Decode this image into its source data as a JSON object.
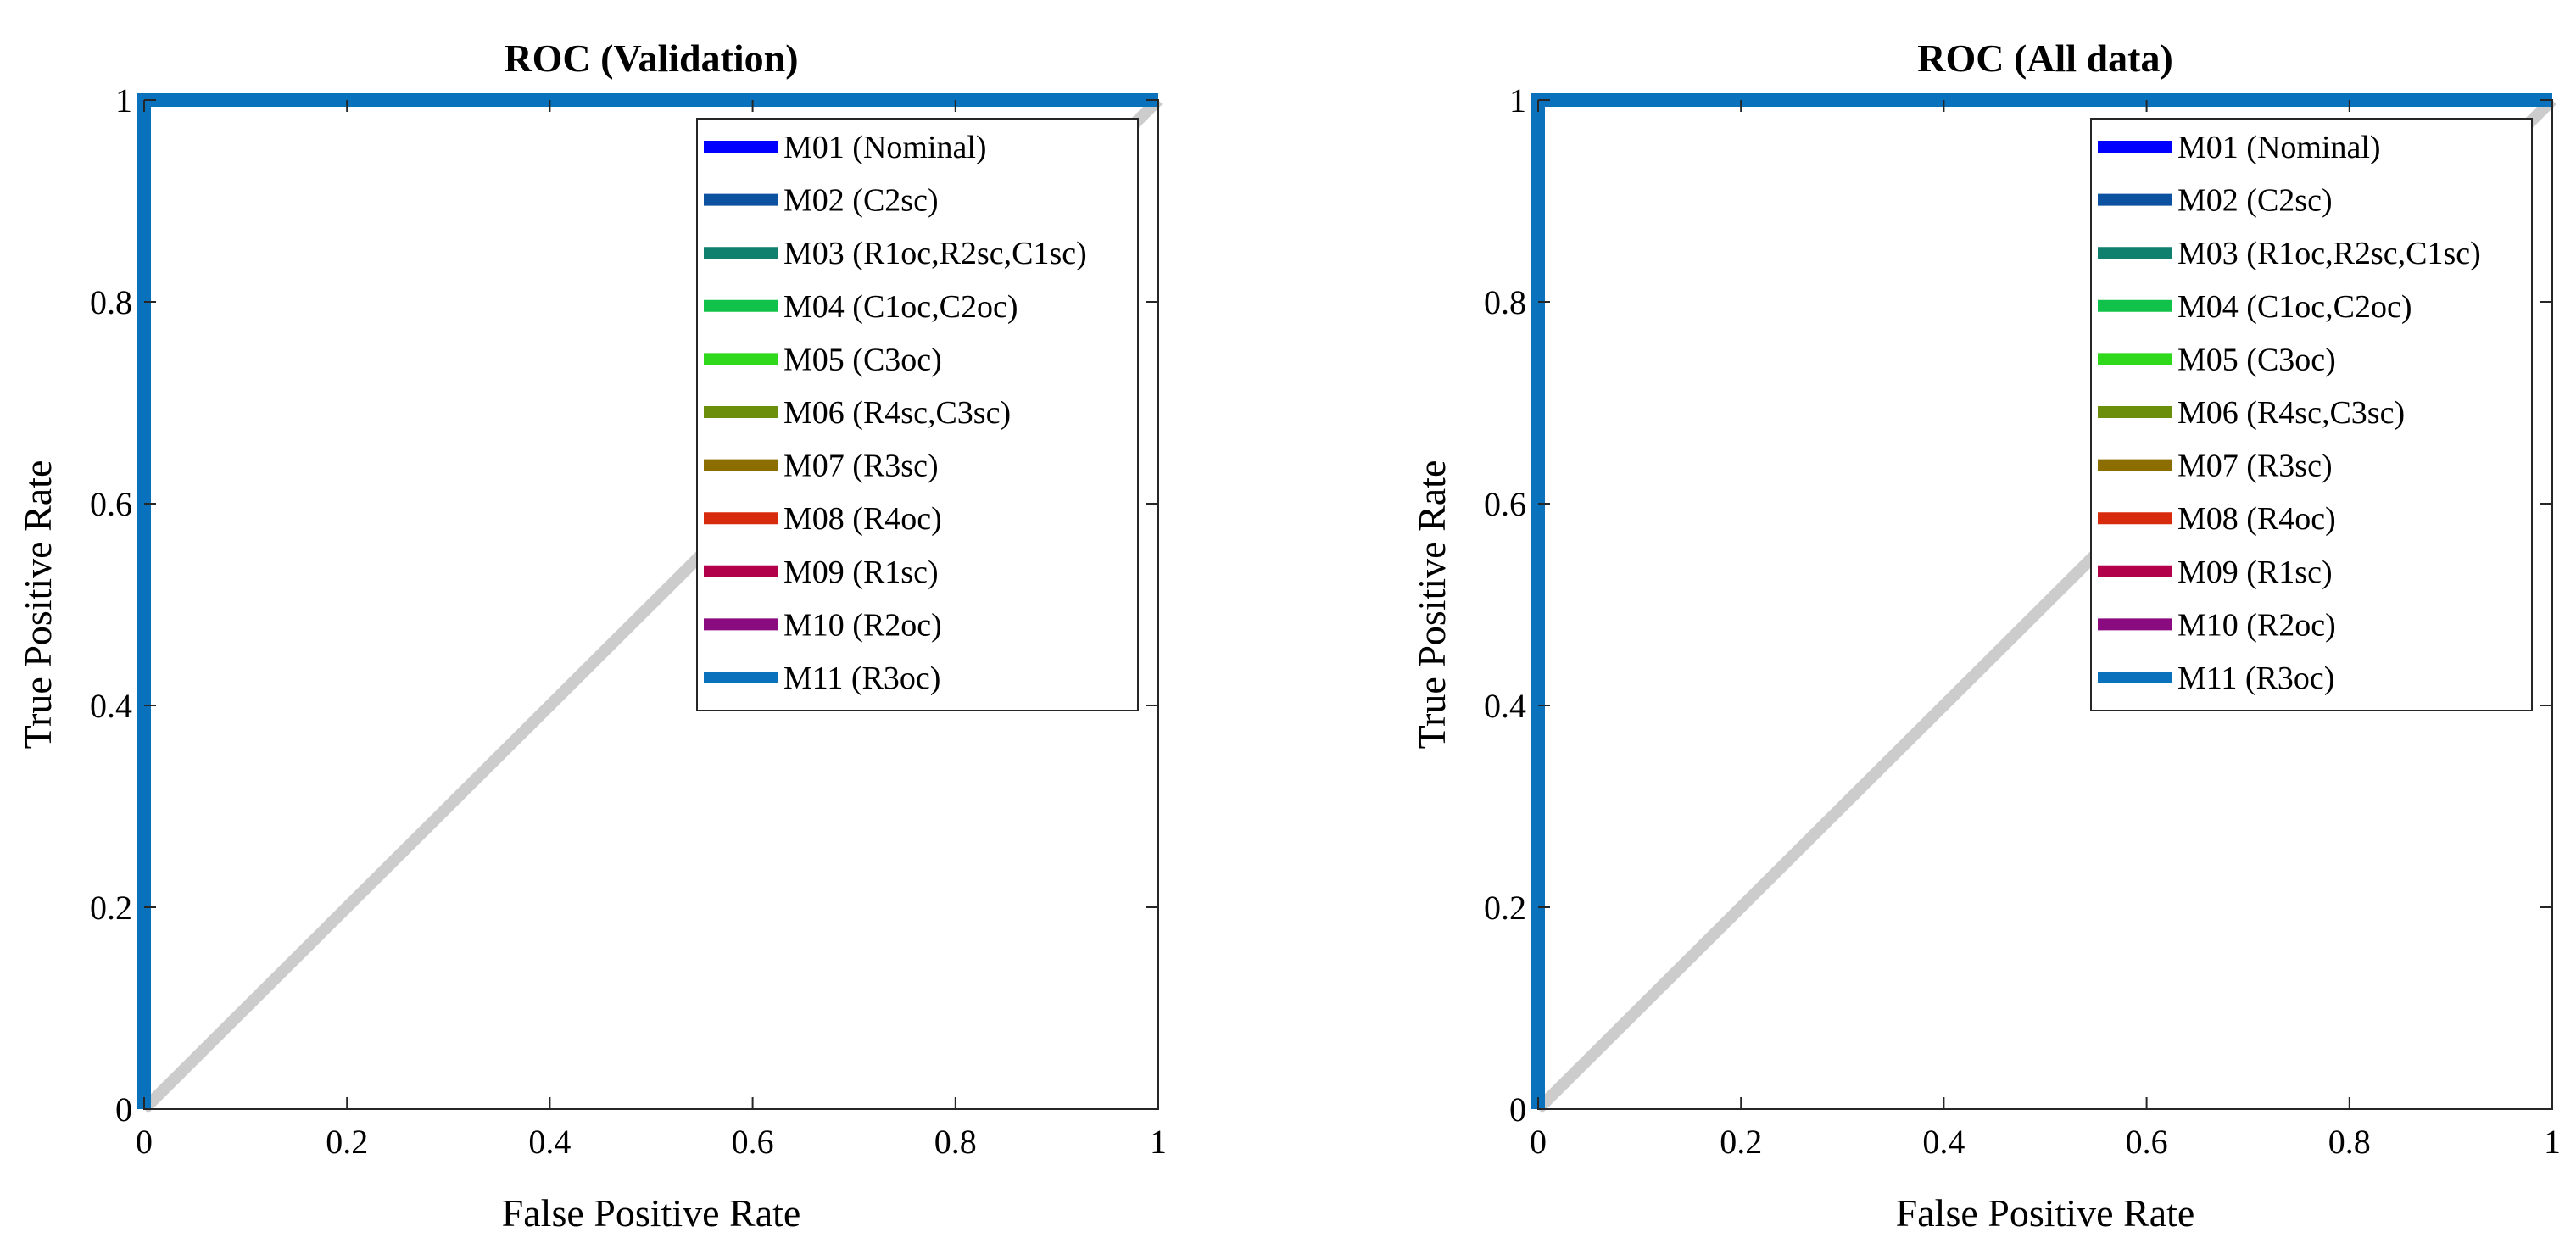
{
  "chart_data": [
    {
      "type": "line",
      "title": "ROC (Validation)",
      "xlabel": "False Positive Rate",
      "ylabel": "True Positive Rate",
      "xlim": [
        0,
        1
      ],
      "ylim": [
        0,
        1
      ],
      "xticks": [
        0,
        0.2,
        0.4,
        0.6,
        0.8,
        1
      ],
      "yticks": [
        0,
        0.2,
        0.4,
        0.6,
        0.8,
        1
      ],
      "xtick_labels": [
        "0",
        "0.2",
        "0.4",
        "0.6",
        "0.8",
        "1"
      ],
      "ytick_labels": [
        "0",
        "0.2",
        "0.4",
        "0.6",
        "0.8",
        "1"
      ],
      "grid": false,
      "legend_position": "top-right",
      "reference_line": {
        "name": "chance diagonal",
        "color": "#cccccc",
        "x": [
          0,
          1
        ],
        "y": [
          0,
          1
        ]
      },
      "series": [
        {
          "name": "M01 (Nominal)",
          "color": "#0000ff",
          "x": [
            0,
            0,
            1
          ],
          "y": [
            0,
            1,
            1
          ]
        },
        {
          "name": "M02 (C2sc)",
          "color": "#0d52a1",
          "x": [
            0,
            0,
            1
          ],
          "y": [
            0,
            1,
            1
          ]
        },
        {
          "name": "M03 (R1oc,R2sc,C1sc)",
          "color": "#0f7f6e",
          "x": [
            0,
            0,
            1
          ],
          "y": [
            0,
            1,
            1
          ]
        },
        {
          "name": "M04 (C1oc,C2oc)",
          "color": "#10c24a",
          "x": [
            0,
            0,
            1
          ],
          "y": [
            0,
            1,
            1
          ]
        },
        {
          "name": "M05 (C3oc)",
          "color": "#2ed81a",
          "x": [
            0,
            0,
            1
          ],
          "y": [
            0,
            1,
            1
          ]
        },
        {
          "name": "M06 (R4sc,C3sc)",
          "color": "#6b8f0b",
          "x": [
            0,
            0,
            1
          ],
          "y": [
            0,
            1,
            1
          ]
        },
        {
          "name": "M07 (R3sc)",
          "color": "#8c6d00",
          "x": [
            0,
            0,
            1
          ],
          "y": [
            0,
            1,
            1
          ]
        },
        {
          "name": "M08 (R4oc)",
          "color": "#d82a0c",
          "x": [
            0,
            0,
            1
          ],
          "y": [
            0,
            1,
            1
          ]
        },
        {
          "name": "M09 (R1sc)",
          "color": "#b3004a",
          "x": [
            0,
            0,
            1
          ],
          "y": [
            0,
            1,
            1
          ]
        },
        {
          "name": "M10 (R2oc)",
          "color": "#8a0a80",
          "x": [
            0,
            0,
            1
          ],
          "y": [
            0,
            1,
            1
          ]
        },
        {
          "name": "M11 (R3oc)",
          "color": "#0a72bd",
          "x": [
            0,
            0,
            1
          ],
          "y": [
            0,
            1,
            1
          ]
        }
      ]
    },
    {
      "type": "line",
      "title": "ROC (All data)",
      "xlabel": "False Positive Rate",
      "ylabel": "True Positive Rate",
      "xlim": [
        0,
        1
      ],
      "ylim": [
        0,
        1
      ],
      "xticks": [
        0,
        0.2,
        0.4,
        0.6,
        0.8,
        1
      ],
      "yticks": [
        0,
        0.2,
        0.4,
        0.6,
        0.8,
        1
      ],
      "xtick_labels": [
        "0",
        "0.2",
        "0.4",
        "0.6",
        "0.8",
        "1"
      ],
      "ytick_labels": [
        "0",
        "0.2",
        "0.4",
        "0.6",
        "0.8",
        "1"
      ],
      "grid": false,
      "legend_position": "top-right",
      "reference_line": {
        "name": "chance diagonal",
        "color": "#cccccc",
        "x": [
          0,
          1
        ],
        "y": [
          0,
          1
        ]
      },
      "series": [
        {
          "name": "M01 (Nominal)",
          "color": "#0000ff",
          "x": [
            0,
            0,
            1
          ],
          "y": [
            0,
            1,
            1
          ]
        },
        {
          "name": "M02 (C2sc)",
          "color": "#0d52a1",
          "x": [
            0,
            0,
            1
          ],
          "y": [
            0,
            1,
            1
          ]
        },
        {
          "name": "M03 (R1oc,R2sc,C1sc)",
          "color": "#0f7f6e",
          "x": [
            0,
            0,
            1
          ],
          "y": [
            0,
            1,
            1
          ]
        },
        {
          "name": "M04 (C1oc,C2oc)",
          "color": "#10c24a",
          "x": [
            0,
            0,
            1
          ],
          "y": [
            0,
            1,
            1
          ]
        },
        {
          "name": "M05 (C3oc)",
          "color": "#2ed81a",
          "x": [
            0,
            0,
            1
          ],
          "y": [
            0,
            1,
            1
          ]
        },
        {
          "name": "M06 (R4sc,C3sc)",
          "color": "#6b8f0b",
          "x": [
            0,
            0,
            1
          ],
          "y": [
            0,
            1,
            1
          ]
        },
        {
          "name": "M07 (R3sc)",
          "color": "#8c6d00",
          "x": [
            0,
            0,
            1
          ],
          "y": [
            0,
            1,
            1
          ]
        },
        {
          "name": "M08 (R4oc)",
          "color": "#d82a0c",
          "x": [
            0,
            0,
            1
          ],
          "y": [
            0,
            1,
            1
          ]
        },
        {
          "name": "M09 (R1sc)",
          "color": "#b3004a",
          "x": [
            0,
            0,
            1
          ],
          "y": [
            0,
            1,
            1
          ]
        },
        {
          "name": "M10 (R2oc)",
          "color": "#8a0a80",
          "x": [
            0,
            0,
            1
          ],
          "y": [
            0,
            1,
            1
          ]
        },
        {
          "name": "M11 (R3oc)",
          "color": "#0a72bd",
          "x": [
            0,
            0,
            1
          ],
          "y": [
            0,
            1,
            1
          ]
        }
      ]
    }
  ]
}
